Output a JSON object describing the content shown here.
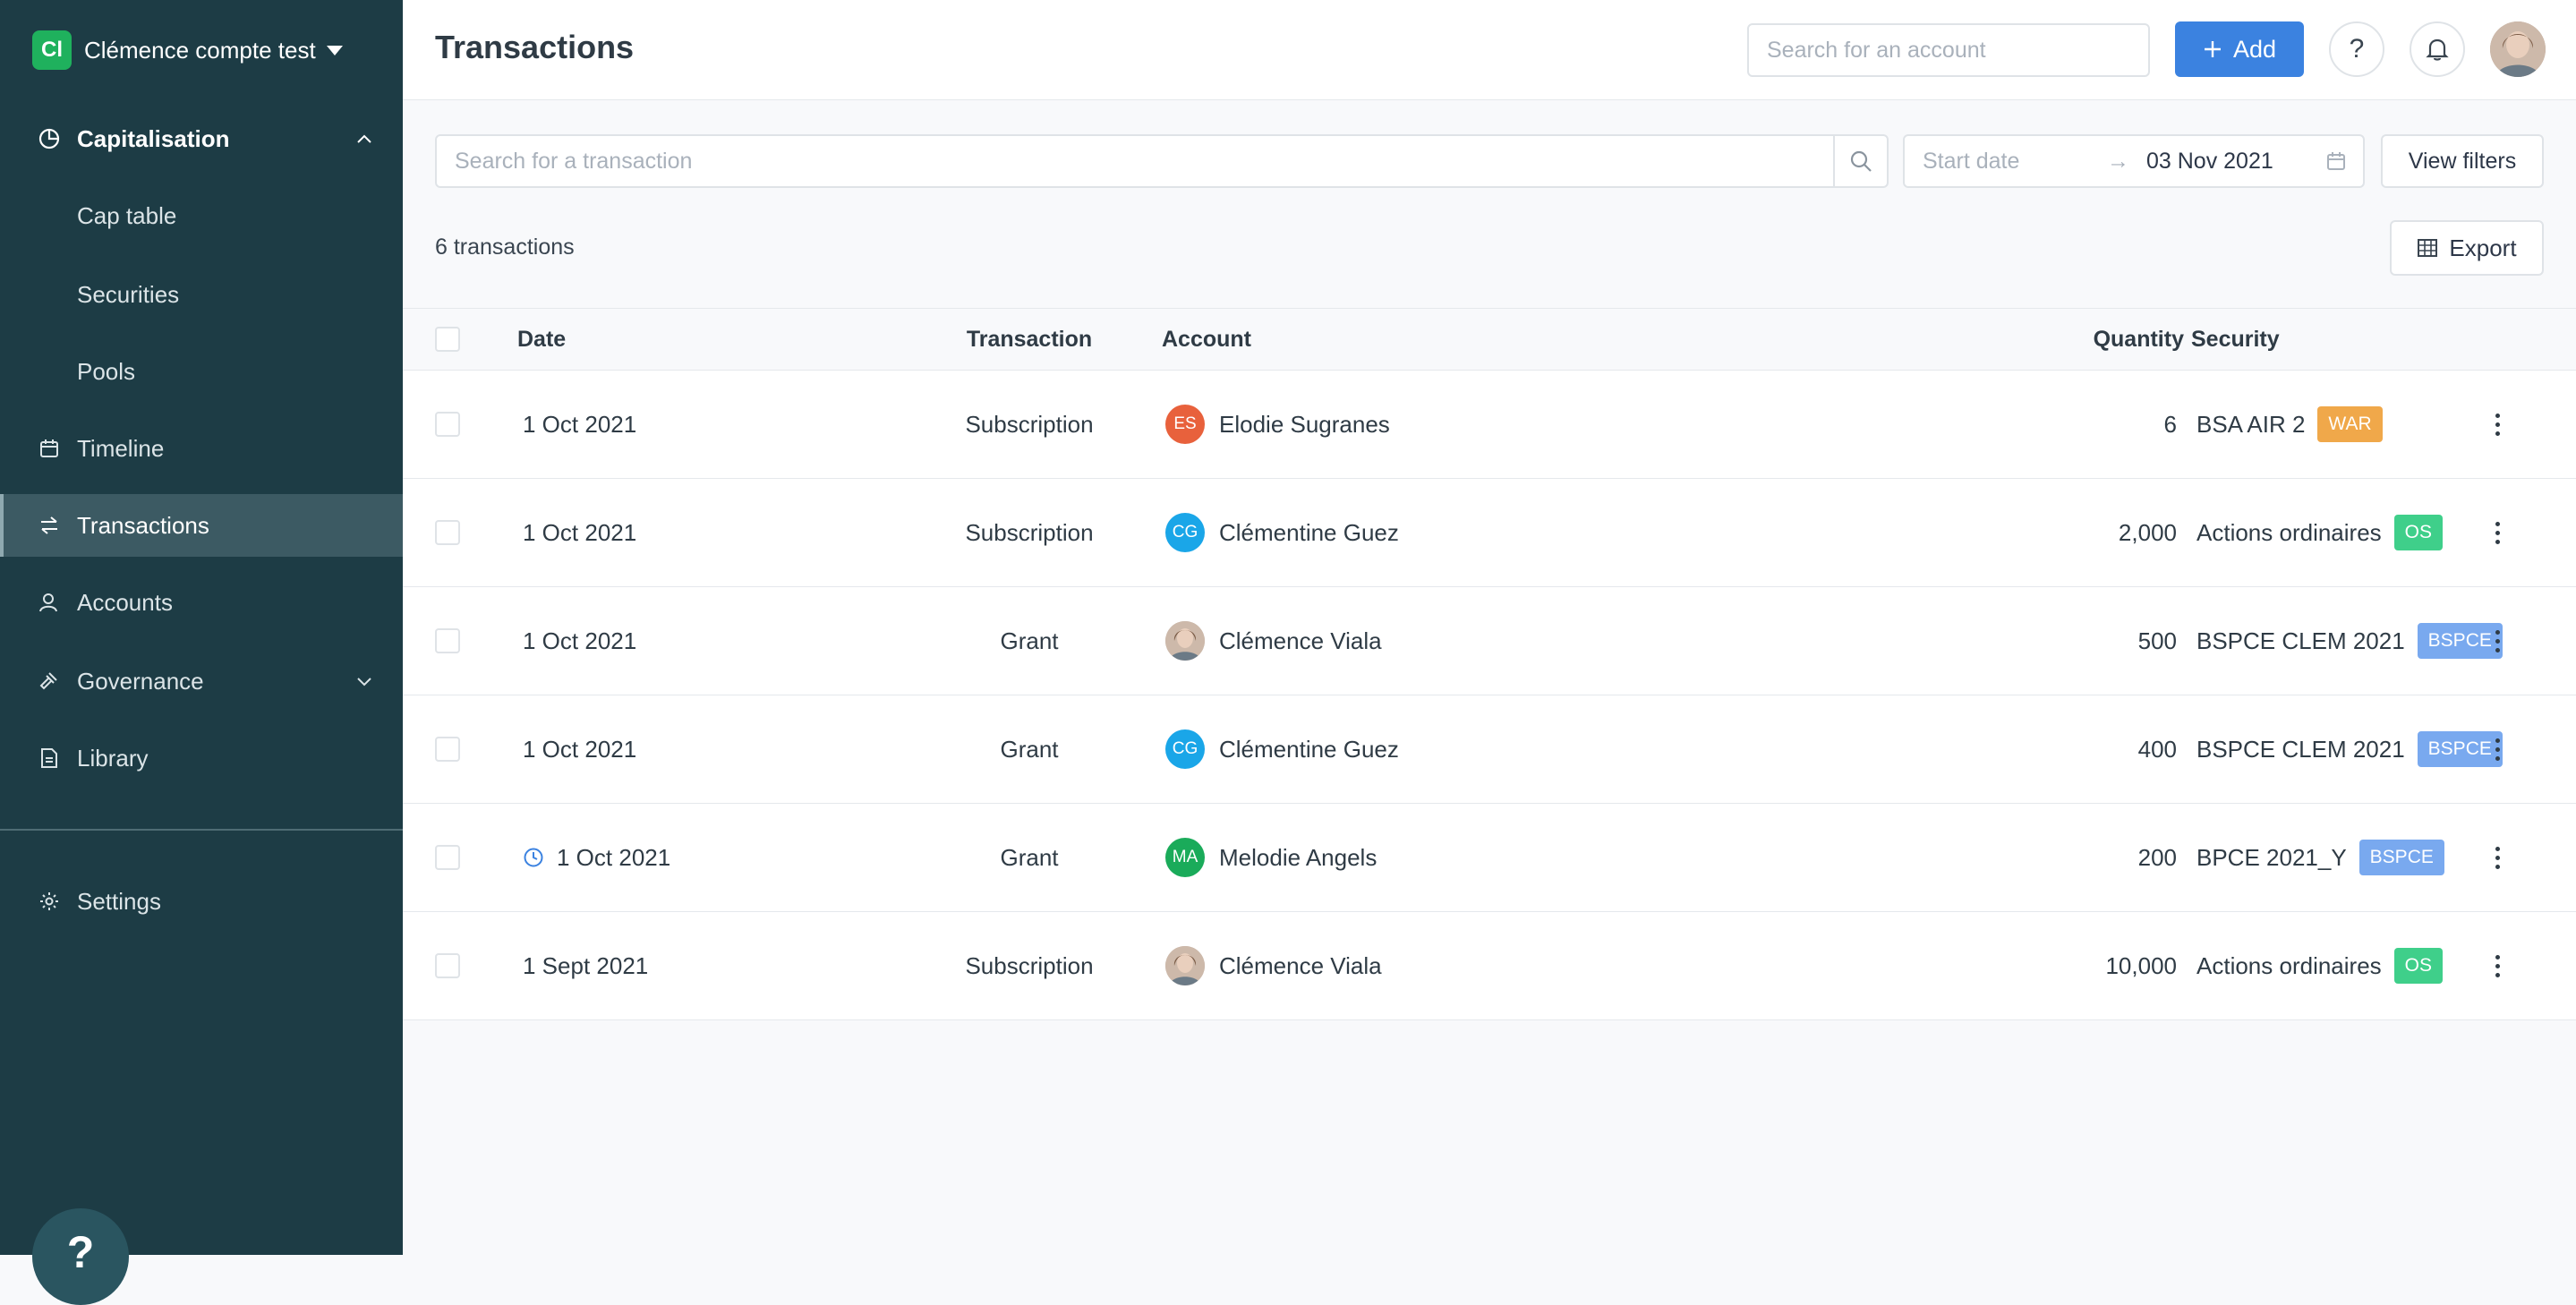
{
  "org": {
    "initials": "Cl",
    "name": "Clémence compte test"
  },
  "sidebar": {
    "items": [
      {
        "label": "Capitalisation",
        "icon": "pie-chart-icon"
      },
      {
        "label": "Cap table"
      },
      {
        "label": "Securities"
      },
      {
        "label": "Pools"
      },
      {
        "label": "Timeline",
        "icon": "calendar-icon"
      },
      {
        "label": "Transactions",
        "icon": "transfer-arrows-icon"
      },
      {
        "label": "Accounts",
        "icon": "user-icon"
      },
      {
        "label": "Governance",
        "icon": "gavel-icon"
      },
      {
        "label": "Library",
        "icon": "document-icon"
      },
      {
        "label": "Settings",
        "icon": "gear-icon"
      }
    ],
    "help_label": "?"
  },
  "header": {
    "title": "Transactions",
    "account_search_placeholder": "Search for an account",
    "add_label": "Add",
    "help_label": "?"
  },
  "filters": {
    "search_placeholder": "Search for a transaction",
    "start_date_placeholder": "Start date",
    "arrow": "→",
    "end_date": "03 Nov 2021",
    "view_filters_label": "View filters"
  },
  "summary": {
    "count_text": "6 transactions",
    "export_label": "Export"
  },
  "table": {
    "headers": {
      "date": "Date",
      "transaction": "Transaction",
      "account": "Account",
      "quantity": "Quantity",
      "security": "Security"
    },
    "rows": [
      {
        "date": "1 Oct 2021",
        "transaction": "Subscription",
        "account": "Elodie Sugranes",
        "initials": "ES",
        "avatar_color": "#e8613c",
        "quantity": "6",
        "security": "BSA AIR 2",
        "badge": "WAR",
        "badge_color": "#f0a84a"
      },
      {
        "date": "1 Oct 2021",
        "transaction": "Subscription",
        "account": "Clémentine Guez",
        "initials": "CG",
        "avatar_color": "#1aa6e8",
        "quantity": "2,000",
        "security": "Actions ordinaires",
        "badge": "OS",
        "badge_color": "#3fcf8a"
      },
      {
        "date": "1 Oct 2021",
        "transaction": "Grant",
        "account": "Clémence Viala",
        "initials": "",
        "avatar_color": "#b9a596",
        "quantity": "500",
        "security": "BSPCE CLEM 2021",
        "badge": "BSPCE",
        "badge_color": "#79a9ef"
      },
      {
        "date": "1 Oct 2021",
        "transaction": "Grant",
        "account": "Clémentine Guez",
        "initials": "CG",
        "avatar_color": "#1aa6e8",
        "quantity": "400",
        "security": "BSPCE CLEM 2021",
        "badge": "BSPCE",
        "badge_color": "#79a9ef"
      },
      {
        "date": "1 Oct 2021",
        "transaction": "Grant",
        "account": "Melodie Angels",
        "initials": "MA",
        "avatar_color": "#1aab5a",
        "quantity": "200",
        "security": "BPCE 2021_Y",
        "badge": "BSPCE",
        "badge_color": "#79a9ef",
        "pending": true
      },
      {
        "date": "1 Sept 2021",
        "transaction": "Subscription",
        "account": "Clémence Viala",
        "initials": "",
        "avatar_color": "#b9a596",
        "quantity": "10,000",
        "security": "Actions ordinaires",
        "badge": "OS",
        "badge_color": "#3fcf8a"
      }
    ]
  }
}
